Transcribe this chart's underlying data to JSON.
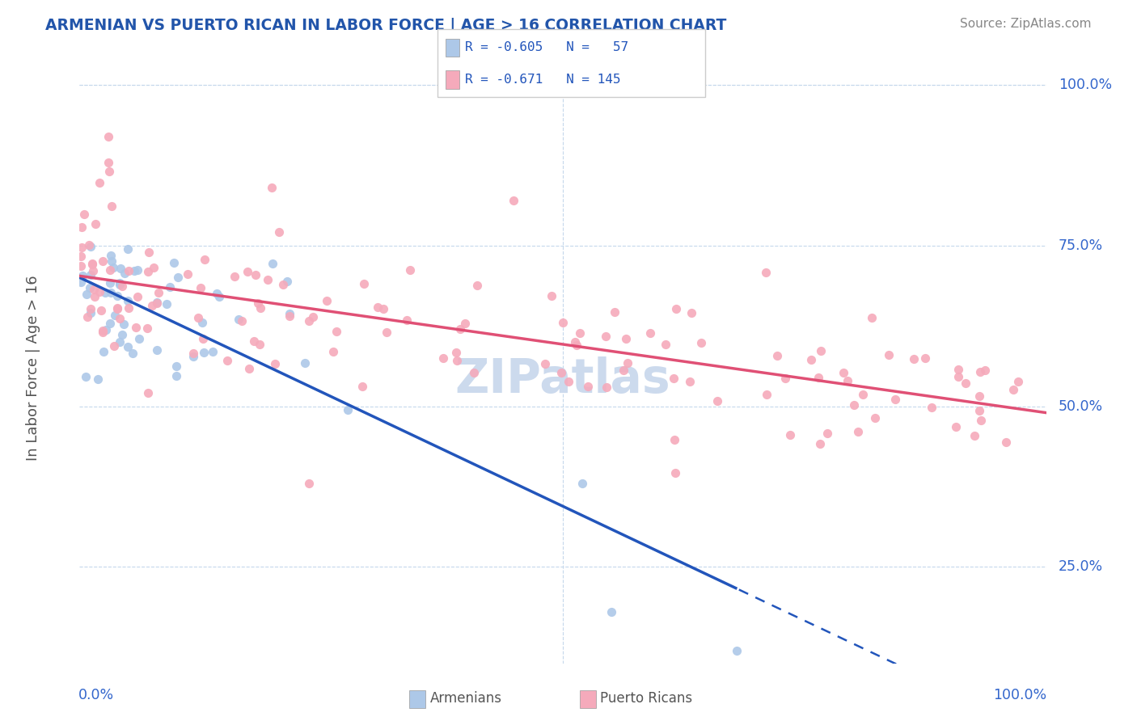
{
  "title": "ARMENIAN VS PUERTO RICAN IN LABOR FORCE | AGE > 16 CORRELATION CHART",
  "source": "Source: ZipAtlas.com",
  "ylabel": "In Labor Force | Age > 16",
  "R_armenian": -0.605,
  "N_armenian": 57,
  "R_puerto_rican": -0.671,
  "N_puerto_rican": 145,
  "armenian_color": "#adc8e8",
  "puerto_rican_color": "#f5aabb",
  "armenian_line_color": "#2255bb",
  "puerto_rican_line_color": "#e05075",
  "background_color": "#ffffff",
  "grid_color": "#c5d8ec",
  "watermark": "ZIPatlas",
  "watermark_color": "#ccdaed",
  "title_color": "#2255aa",
  "source_color": "#888888",
  "axis_label_color": "#3366cc",
  "legend_armenian": "Armenians",
  "legend_puerto_rican": "Puerto Ricans",
  "xmin": 0.0,
  "xmax": 1.0,
  "ymin": 0.1,
  "ymax": 1.02,
  "yticks": [
    0.25,
    0.5,
    0.75,
    1.0
  ],
  "ytick_labels": [
    "25.0%",
    "50.0%",
    "75.0%",
    "100.0%"
  ]
}
